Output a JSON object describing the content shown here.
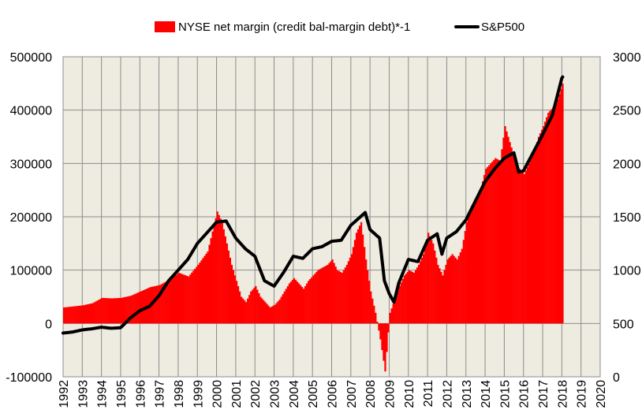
{
  "chart_data": {
    "type": "bar+line",
    "legend": {
      "placement": "top",
      "items": [
        {
          "label": "NYSE net margin (credit bal-margin debt)*-1",
          "marker": "bar",
          "color": "#ff0000"
        },
        {
          "label": "S&P500",
          "marker": "line",
          "color": "#000000"
        }
      ]
    },
    "x_axis": {
      "tick_labels": [
        "1992",
        "1993",
        "1994",
        "1995",
        "1996",
        "1997",
        "1998",
        "1999",
        "2000",
        "2001",
        "2002",
        "2003",
        "2004",
        "2005",
        "2006",
        "2007",
        "2008",
        "2009",
        "2010",
        "2011",
        "2012",
        "2013",
        "2014",
        "2015",
        "2016",
        "2017",
        "2018",
        "2019",
        "2020"
      ],
      "range": [
        1992,
        2020
      ],
      "label_orientation": "vertical"
    },
    "y_left": {
      "range": [
        -100000,
        500000
      ],
      "tick_labels": [
        "500000",
        "400000",
        "300000",
        "200000",
        "100000",
        "0",
        "-100000"
      ]
    },
    "y_right": {
      "range": [
        0,
        3000
      ],
      "tick_labels": [
        "3000",
        "2500",
        "2000",
        "1500",
        "1000",
        "500",
        "0"
      ]
    },
    "grid": true,
    "plot_background": "#eeebe0",
    "series": [
      {
        "name": "NYSE net margin (credit bal-margin debt)*-1",
        "type": "bar",
        "axis": "left",
        "color": "#ff0000",
        "points": [
          [
            1992.0,
            30000
          ],
          [
            1992.5,
            32000
          ],
          [
            1993.0,
            34000
          ],
          [
            1993.5,
            38000
          ],
          [
            1994.0,
            48000
          ],
          [
            1994.5,
            47000
          ],
          [
            1995.0,
            48000
          ],
          [
            1995.5,
            52000
          ],
          [
            1996.0,
            60000
          ],
          [
            1996.5,
            68000
          ],
          [
            1997.0,
            72000
          ],
          [
            1997.5,
            82000
          ],
          [
            1998.0,
            95000
          ],
          [
            1998.5,
            88000
          ],
          [
            1999.0,
            110000
          ],
          [
            1999.5,
            135000
          ],
          [
            2000.0,
            210000
          ],
          [
            2000.25,
            190000
          ],
          [
            2000.5,
            150000
          ],
          [
            2000.75,
            110000
          ],
          [
            2001.0,
            80000
          ],
          [
            2001.25,
            50000
          ],
          [
            2001.5,
            40000
          ],
          [
            2001.75,
            60000
          ],
          [
            2002.0,
            70000
          ],
          [
            2002.25,
            50000
          ],
          [
            2002.5,
            40000
          ],
          [
            2002.75,
            30000
          ],
          [
            2003.0,
            35000
          ],
          [
            2003.25,
            45000
          ],
          [
            2003.5,
            60000
          ],
          [
            2003.75,
            75000
          ],
          [
            2004.0,
            85000
          ],
          [
            2004.25,
            75000
          ],
          [
            2004.5,
            65000
          ],
          [
            2004.75,
            80000
          ],
          [
            2005.0,
            90000
          ],
          [
            2005.25,
            100000
          ],
          [
            2005.5,
            105000
          ],
          [
            2005.75,
            110000
          ],
          [
            2006.0,
            120000
          ],
          [
            2006.25,
            100000
          ],
          [
            2006.5,
            95000
          ],
          [
            2006.75,
            110000
          ],
          [
            2007.0,
            130000
          ],
          [
            2007.25,
            170000
          ],
          [
            2007.5,
            190000
          ],
          [
            2007.75,
            120000
          ],
          [
            2008.0,
            60000
          ],
          [
            2008.25,
            20000
          ],
          [
            2008.5,
            -30000
          ],
          [
            2008.75,
            -90000
          ],
          [
            2009.0,
            20000
          ],
          [
            2009.25,
            45000
          ],
          [
            2009.5,
            70000
          ],
          [
            2009.75,
            90000
          ],
          [
            2010.0,
            100000
          ],
          [
            2010.25,
            95000
          ],
          [
            2010.5,
            110000
          ],
          [
            2010.75,
            130000
          ],
          [
            2011.0,
            170000
          ],
          [
            2011.25,
            150000
          ],
          [
            2011.5,
            110000
          ],
          [
            2011.75,
            90000
          ],
          [
            2012.0,
            120000
          ],
          [
            2012.25,
            130000
          ],
          [
            2012.5,
            120000
          ],
          [
            2012.75,
            140000
          ],
          [
            2013.0,
            190000
          ],
          [
            2013.25,
            220000
          ],
          [
            2013.5,
            230000
          ],
          [
            2013.75,
            255000
          ],
          [
            2014.0,
            290000
          ],
          [
            2014.25,
            300000
          ],
          [
            2014.5,
            310000
          ],
          [
            2014.75,
            305000
          ],
          [
            2015.0,
            370000
          ],
          [
            2015.25,
            340000
          ],
          [
            2015.5,
            310000
          ],
          [
            2015.75,
            290000
          ],
          [
            2016.0,
            280000
          ],
          [
            2016.25,
            300000
          ],
          [
            2016.5,
            320000
          ],
          [
            2016.75,
            350000
          ],
          [
            2017.0,
            370000
          ],
          [
            2017.25,
            395000
          ],
          [
            2017.5,
            405000
          ],
          [
            2017.75,
            420000
          ],
          [
            2018.0,
            450000
          ],
          [
            2018.08,
            460000
          ]
        ]
      },
      {
        "name": "S&P500",
        "type": "line",
        "axis": "right",
        "color": "#000000",
        "points": [
          [
            1992.0,
            410
          ],
          [
            1992.5,
            420
          ],
          [
            1993.0,
            440
          ],
          [
            1993.5,
            450
          ],
          [
            1994.0,
            465
          ],
          [
            1994.5,
            455
          ],
          [
            1995.0,
            460
          ],
          [
            1995.5,
            550
          ],
          [
            1996.0,
            620
          ],
          [
            1996.5,
            660
          ],
          [
            1997.0,
            760
          ],
          [
            1997.5,
            900
          ],
          [
            1998.0,
            1000
          ],
          [
            1998.5,
            1100
          ],
          [
            1999.0,
            1250
          ],
          [
            1999.5,
            1350
          ],
          [
            2000.0,
            1450
          ],
          [
            2000.5,
            1460
          ],
          [
            2001.0,
            1300
          ],
          [
            2001.5,
            1200
          ],
          [
            2002.0,
            1130
          ],
          [
            2002.5,
            900
          ],
          [
            2003.0,
            850
          ],
          [
            2003.5,
            980
          ],
          [
            2004.0,
            1130
          ],
          [
            2004.5,
            1110
          ],
          [
            2005.0,
            1200
          ],
          [
            2005.5,
            1220
          ],
          [
            2006.0,
            1270
          ],
          [
            2006.5,
            1280
          ],
          [
            2007.0,
            1420
          ],
          [
            2007.5,
            1500
          ],
          [
            2007.75,
            1540
          ],
          [
            2008.0,
            1380
          ],
          [
            2008.5,
            1300
          ],
          [
            2008.75,
            900
          ],
          [
            2009.0,
            780
          ],
          [
            2009.25,
            700
          ],
          [
            2009.5,
            880
          ],
          [
            2010.0,
            1100
          ],
          [
            2010.5,
            1080
          ],
          [
            2011.0,
            1280
          ],
          [
            2011.5,
            1340
          ],
          [
            2011.75,
            1150
          ],
          [
            2012.0,
            1300
          ],
          [
            2012.5,
            1360
          ],
          [
            2013.0,
            1470
          ],
          [
            2013.5,
            1650
          ],
          [
            2014.0,
            1830
          ],
          [
            2014.5,
            1950
          ],
          [
            2015.0,
            2050
          ],
          [
            2015.5,
            2100
          ],
          [
            2015.75,
            1920
          ],
          [
            2016.0,
            1930
          ],
          [
            2016.5,
            2100
          ],
          [
            2017.0,
            2270
          ],
          [
            2017.5,
            2450
          ],
          [
            2018.0,
            2800
          ],
          [
            2018.08,
            2820
          ]
        ]
      }
    ]
  }
}
